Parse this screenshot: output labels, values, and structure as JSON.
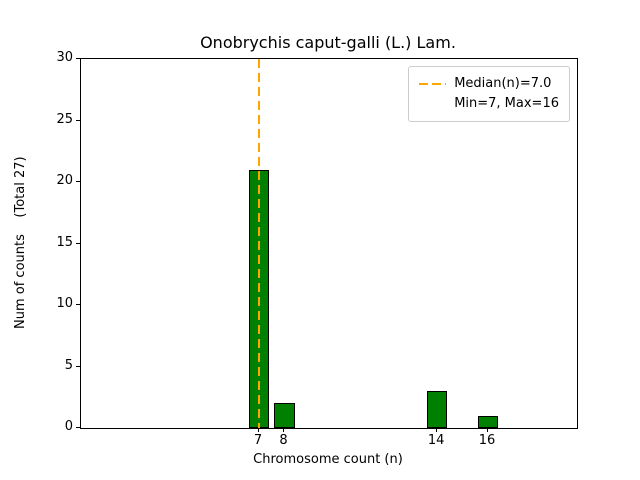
{
  "chart_data": {
    "type": "bar",
    "title": "Onobrychis caput-galli (L.) Lam.",
    "xlabel": "Chromosome count (n)",
    "ylabel": "Num of counts    (Total 27)",
    "categories": [
      7,
      8,
      14,
      16
    ],
    "values": [
      21,
      2,
      3,
      1
    ],
    "bar_color": "#008000",
    "bar_edge_color": "#000000",
    "bar_width": 0.8,
    "xlim": [
      0,
      19.5
    ],
    "ylim": [
      0,
      30
    ],
    "yticks": [
      0,
      5,
      10,
      15,
      20,
      25,
      30
    ],
    "grid": false,
    "legend_position": "upper right",
    "median": 7.0,
    "median_line_color": "#FFA500",
    "median_line_style": "dashed",
    "legend": {
      "median_label": "Median(n)=7.0",
      "minmax_label": "Min=7, Max=16"
    }
  }
}
